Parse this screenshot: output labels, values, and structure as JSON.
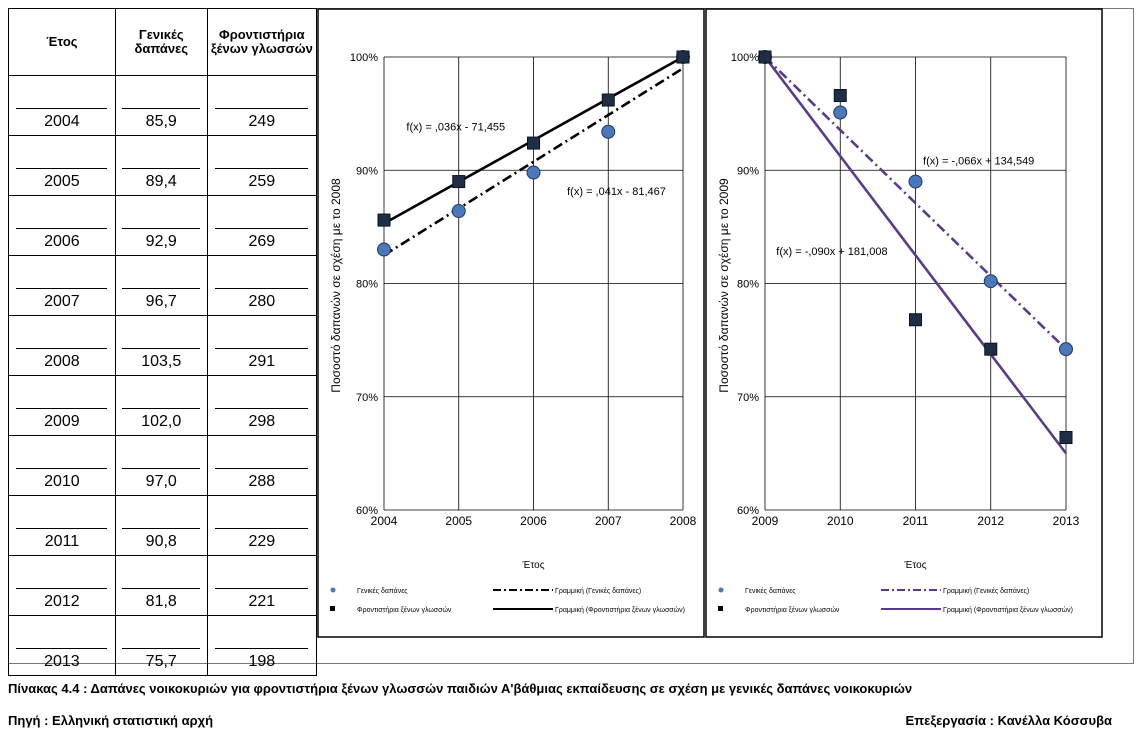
{
  "table": {
    "headers": [
      "Έτος",
      "Γενικές δαπάνες",
      "Φροντιστήρια ξένων γλωσσών"
    ],
    "rows": [
      [
        "2004",
        "85,9",
        "249"
      ],
      [
        "2005",
        "89,4",
        "259"
      ],
      [
        "2006",
        "92,9",
        "269"
      ],
      [
        "2007",
        "96,7",
        "280"
      ],
      [
        "2008",
        "103,5",
        "291"
      ],
      [
        "2009",
        "102,0",
        "298"
      ],
      [
        "2010",
        "97,0",
        "288"
      ],
      [
        "2011",
        "90,8",
        "229"
      ],
      [
        "2012",
        "81,8",
        "221"
      ],
      [
        "2013",
        "75,7",
        "198"
      ]
    ]
  },
  "chart_data": [
    {
      "type": "scatter",
      "x": [
        2004,
        2005,
        2006,
        2007,
        2008
      ],
      "xticks": [
        "2004",
        "2005",
        "2006",
        "2007",
        "2008"
      ],
      "xlim": [
        2004,
        2008
      ],
      "ylim": [
        0.6,
        1.0
      ],
      "yticks": [
        "60%",
        "70%",
        "80%",
        "90%",
        "100%"
      ],
      "xlabel": "Έτος",
      "ylabel": "Ποσοστό δαπανών σε σχέση με το 2008",
      "grid": true,
      "legend_position": "bottom",
      "series": [
        {
          "name": "Γενικές δαπάνες",
          "values": [
            0.83,
            0.864,
            0.898,
            0.934,
            1.0
          ],
          "marker": "circle",
          "color": "#4a78b8"
        },
        {
          "name": "Φροντιστήρια ξένων γλωσσών",
          "values": [
            0.856,
            0.89,
            0.924,
            0.962,
            1.0
          ],
          "marker": "square",
          "color": "#1f2d45"
        }
      ],
      "trendlines": [
        {
          "name": "Γραμμική (Γενικές δαπάνες)",
          "endpoints": [
            [
              2004,
              0.825
            ],
            [
              2008,
              0.99
            ]
          ],
          "style": "dashdot",
          "color": "#000000"
        },
        {
          "name": "Γραμμική (Φροντιστήρια ξένων γλωσσών)",
          "endpoints": [
            [
              2004,
              0.853
            ],
            [
              2008,
              1.0
            ]
          ],
          "style": "solid",
          "color": "#000000"
        }
      ],
      "annotations": [
        {
          "text": "f(x) = ,036x - 71,455",
          "at": [
            2004.3,
            0.935
          ]
        },
        {
          "text": "f(x) = ,041x - 81,467",
          "at": [
            2006.45,
            0.878
          ]
        }
      ]
    },
    {
      "type": "scatter",
      "x": [
        2009,
        2010,
        2011,
        2012,
        2013
      ],
      "xticks": [
        "2009",
        "2010",
        "2011",
        "2012",
        "2013"
      ],
      "xlim": [
        2009,
        2013
      ],
      "ylim": [
        0.6,
        1.0
      ],
      "yticks": [
        "60%",
        "70%",
        "80%",
        "90%",
        "100%"
      ],
      "xlabel": "Έτος",
      "ylabel": "Ποσοστό δαπανών σε σχέση με το 2009",
      "grid": true,
      "legend_position": "bottom",
      "series": [
        {
          "name": "Γενικές δαπάνες",
          "values": [
            1.0,
            0.951,
            0.89,
            0.802,
            0.742
          ],
          "marker": "circle",
          "color": "#4a78b8"
        },
        {
          "name": "Φροντιστήρια ξένων γλωσσών",
          "values": [
            1.0,
            0.966,
            0.768,
            0.742,
            0.664
          ],
          "marker": "square",
          "color": "#1f2d45"
        }
      ],
      "trendlines": [
        {
          "name": "Γραμμική (Γενικές δαπάνες)",
          "endpoints": [
            [
              2009,
              1.0
            ],
            [
              2013,
              0.742
            ]
          ],
          "style": "dashdot",
          "color": "#5b3a8c"
        },
        {
          "name": "Γραμμική (Φροντιστήρια ξένων γλωσσών)",
          "endpoints": [
            [
              2009,
              1.0
            ],
            [
              2013,
              0.65
            ]
          ],
          "style": "solid",
          "color": "#5b3a8c"
        }
      ],
      "annotations": [
        {
          "text": "f(x) = -,066x + 134,549",
          "at": [
            2011.1,
            0.905
          ]
        },
        {
          "text": "f(x) = -,090x + 181,008",
          "at": [
            2009.15,
            0.825
          ]
        }
      ]
    }
  ],
  "footer": {
    "caption": "Πίνακας 4.4 : Δαπάνες νοικοκυριών για φροντιστήρια ξένων γλωσσών παιδιών Α'βάθμιας εκπαίδευσης σε σχέση με γενικές δαπάνες νοικοκυριών",
    "source": "Πηγή : Ελληνική στατιστική αρχή",
    "processing": "Επεξεργασία : Κανέλλα Κόσσυβα"
  }
}
